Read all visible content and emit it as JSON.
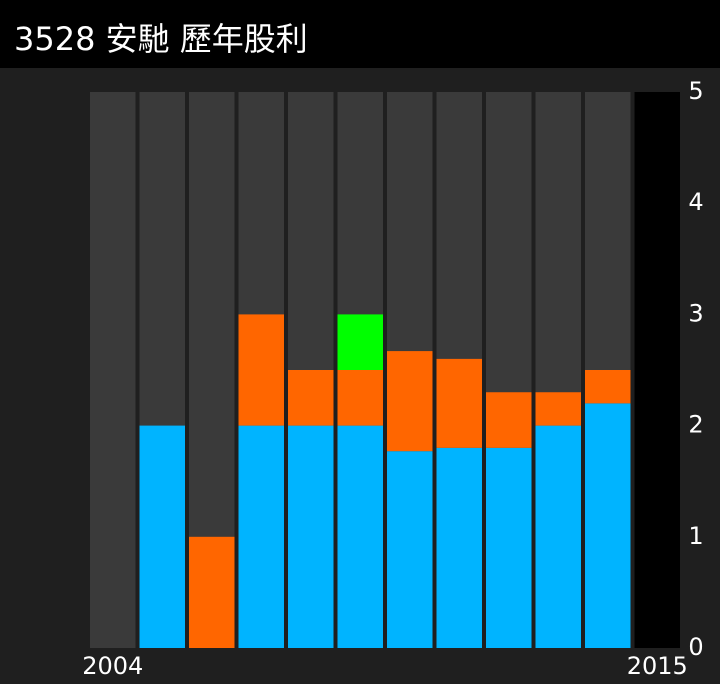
{
  "chart_data": {
    "type": "stacked-bar",
    "title": "3528 安馳 歷年股利",
    "categories": [
      "2004",
      null,
      null,
      null,
      null,
      null,
      null,
      null,
      null,
      null,
      null,
      "2015"
    ],
    "series": [
      {
        "color": "#00b4ff",
        "values": [
          0,
          2,
          0,
          2,
          2,
          2,
          1.77,
          1.8,
          1.8,
          2,
          2.2,
          0
        ]
      },
      {
        "color": "#ff6600",
        "values": [
          0,
          0,
          1,
          1,
          0.5,
          0.5,
          0.9,
          0.8,
          0.5,
          0.3,
          0.3,
          0
        ]
      },
      {
        "color": "#00ff00",
        "values": [
          0,
          0,
          0,
          0,
          0,
          0.5,
          0,
          0,
          0,
          0,
          0,
          0
        ]
      }
    ],
    "ylim": [
      0,
      5
    ],
    "yticks": [
      0,
      1,
      2,
      3,
      4,
      5
    ]
  }
}
